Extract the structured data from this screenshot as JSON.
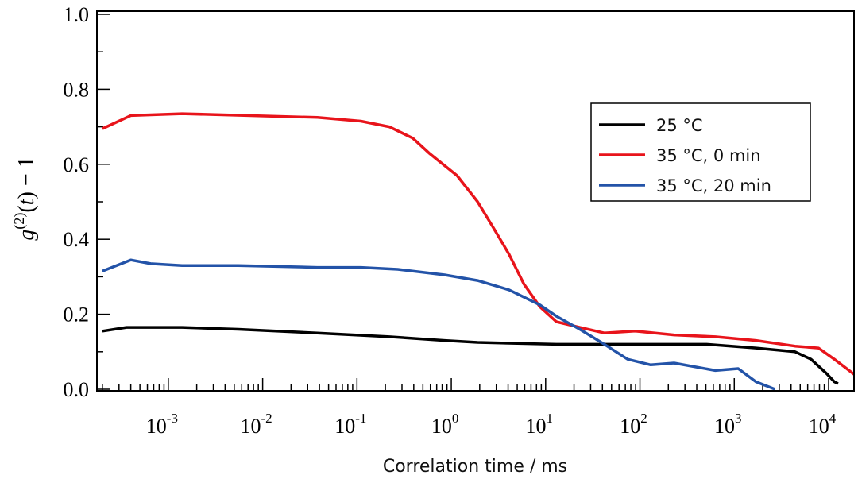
{
  "chart_data": {
    "type": "line",
    "xlabel": "Correlation time / ms",
    "ylabel": "g(2)(t) − 1",
    "xscale": "log",
    "xlim": [
      0.000175,
      18600
    ],
    "ylim": [
      0,
      1.0
    ],
    "x_ticks": [
      {
        "base": "10",
        "exp": "-3",
        "value": 0.001
      },
      {
        "base": "10",
        "exp": "-2",
        "value": 0.01
      },
      {
        "base": "10",
        "exp": "-1",
        "value": 0.1
      },
      {
        "base": "10",
        "exp": "0",
        "value": 1
      },
      {
        "base": "10",
        "exp": "1",
        "value": 10
      },
      {
        "base": "10",
        "exp": "2",
        "value": 100
      },
      {
        "base": "10",
        "exp": "3",
        "value": 1000
      },
      {
        "base": "10",
        "exp": "4",
        "value": 10000
      }
    ],
    "y_ticks": [
      "0.0",
      "0.2",
      "0.4",
      "0.6",
      "0.8",
      "1.0"
    ],
    "legend_position": "right",
    "series": [
      {
        "name": "25 °C",
        "color": "#000000",
        "points": [
          [
            0.0002,
            0.155
          ],
          [
            0.00036,
            0.165
          ],
          [
            0.0014,
            0.165
          ],
          [
            0.0055,
            0.16
          ],
          [
            0.038,
            0.15
          ],
          [
            0.22,
            0.14
          ],
          [
            0.85,
            0.13
          ],
          [
            1.9,
            0.125
          ],
          [
            13,
            0.12
          ],
          [
            510,
            0.12
          ],
          [
            1700,
            0.11
          ],
          [
            4400,
            0.1
          ],
          [
            6500,
            0.08
          ],
          [
            9500,
            0.042
          ],
          [
            11500,
            0.02
          ],
          [
            12600,
            0.015
          ]
        ]
      },
      {
        "name": "35 °C, 0 min",
        "color": "#e8141b",
        "points": [
          [
            0.0002,
            0.695
          ],
          [
            0.0004,
            0.73
          ],
          [
            0.0014,
            0.735
          ],
          [
            0.038,
            0.725
          ],
          [
            0.11,
            0.715
          ],
          [
            0.22,
            0.7
          ],
          [
            0.39,
            0.67
          ],
          [
            0.58,
            0.63
          ],
          [
            1.15,
            0.57
          ],
          [
            1.9,
            0.5
          ],
          [
            2.8,
            0.43
          ],
          [
            4.1,
            0.36
          ],
          [
            5.9,
            0.28
          ],
          [
            8.7,
            0.22
          ],
          [
            13,
            0.18
          ],
          [
            23,
            0.165
          ],
          [
            42,
            0.15
          ],
          [
            89,
            0.155
          ],
          [
            230,
            0.145
          ],
          [
            630,
            0.14
          ],
          [
            1700,
            0.13
          ],
          [
            4400,
            0.115
          ],
          [
            7800,
            0.11
          ],
          [
            11500,
            0.08
          ],
          [
            18600,
            0.04
          ]
        ]
      },
      {
        "name": "35 °C, 20 min",
        "color": "#2353a8",
        "points": [
          [
            0.0002,
            0.315
          ],
          [
            0.0004,
            0.345
          ],
          [
            0.00065,
            0.335
          ],
          [
            0.0014,
            0.33
          ],
          [
            0.0055,
            0.33
          ],
          [
            0.038,
            0.325
          ],
          [
            0.11,
            0.325
          ],
          [
            0.27,
            0.32
          ],
          [
            0.85,
            0.305
          ],
          [
            1.9,
            0.29
          ],
          [
            4.1,
            0.265
          ],
          [
            8.7,
            0.225
          ],
          [
            13,
            0.195
          ],
          [
            23,
            0.16
          ],
          [
            42,
            0.12
          ],
          [
            74,
            0.08
          ],
          [
            130,
            0.065
          ],
          [
            230,
            0.07
          ],
          [
            630,
            0.05
          ],
          [
            1100,
            0.055
          ],
          [
            1700,
            0.02
          ],
          [
            2700,
            0.0
          ]
        ]
      }
    ]
  }
}
